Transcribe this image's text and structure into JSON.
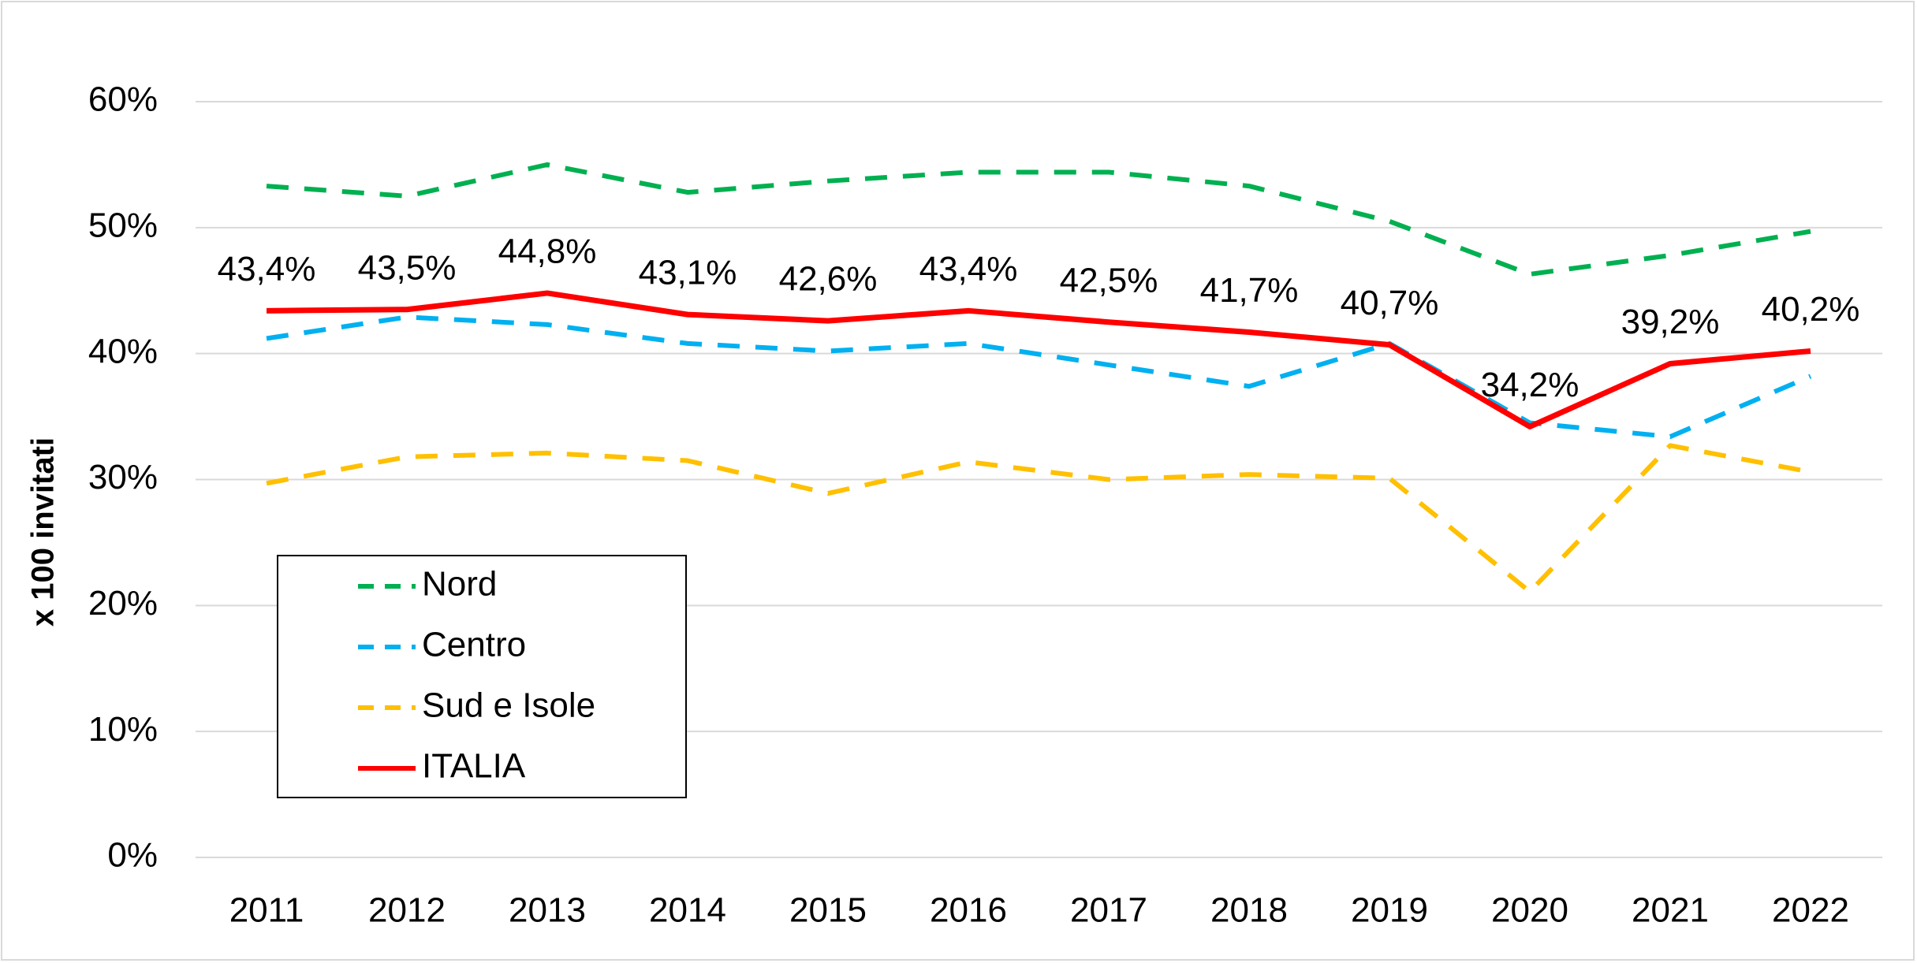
{
  "chart_data": {
    "type": "line",
    "y_label": "x 100 invitati",
    "categories": [
      "2011",
      "2012",
      "2013",
      "2014",
      "2015",
      "2016",
      "2017",
      "2018",
      "2019",
      "2020",
      "2021",
      "2022"
    ],
    "series": [
      {
        "name": "Nord",
        "color": "#00b050",
        "style": "dashed",
        "values": [
          53.3,
          52.5,
          55.0,
          52.8,
          53.7,
          54.4,
          54.4,
          53.3,
          50.5,
          46.3,
          47.8,
          49.7
        ]
      },
      {
        "name": "Centro",
        "color": "#00b0f0",
        "style": "dashed",
        "values": [
          41.2,
          42.9,
          42.3,
          40.8,
          40.2,
          40.8,
          39.1,
          37.4,
          40.8,
          34.5,
          33.4,
          38.2
        ]
      },
      {
        "name": "Sud e Isole",
        "color": "#ffc000",
        "style": "dashed",
        "values": [
          29.7,
          31.8,
          32.1,
          31.5,
          28.9,
          31.4,
          30.0,
          30.4,
          30.1,
          21.1,
          32.7,
          30.6
        ]
      },
      {
        "name": "ITALIA",
        "color": "#ff0000",
        "style": "solid",
        "values": [
          43.4,
          43.5,
          44.8,
          43.1,
          42.6,
          43.4,
          42.5,
          41.7,
          40.7,
          34.2,
          39.2,
          40.2
        ],
        "value_labels": [
          "43,4%",
          "43,5%",
          "44,8%",
          "43,1%",
          "42,6%",
          "43,4%",
          "42,5%",
          "41,7%",
          "40,7%",
          "34,2%",
          "39,2%",
          "40,2%"
        ]
      }
    ],
    "ylim": [
      0,
      60
    ],
    "yticks": [
      {
        "value": 0,
        "label": "0%"
      },
      {
        "value": 10,
        "label": "10%"
      },
      {
        "value": 20,
        "label": "20%"
      },
      {
        "value": 30,
        "label": "30%"
      },
      {
        "value": 40,
        "label": "40%"
      },
      {
        "value": 50,
        "label": "50%"
      },
      {
        "value": 60,
        "label": "60%"
      }
    ],
    "grid": true,
    "legend": "lower-left"
  }
}
